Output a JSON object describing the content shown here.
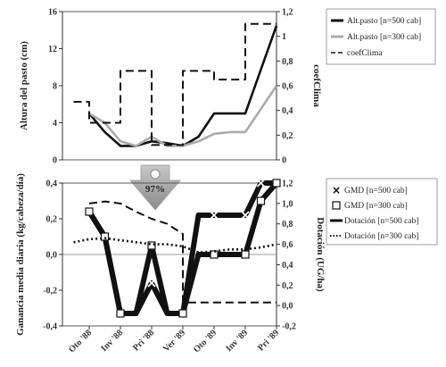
{
  "chart_data": [
    {
      "type": "line",
      "x": [
        "Oto '88",
        "Inv '88",
        "Pri '88",
        "Ver '89",
        "Oto '89",
        "Inv '89",
        "Pri '89"
      ],
      "ylabel": "Altura del pasto (cm)",
      "y2label": "coefClima",
      "ylim": [
        0,
        16
      ],
      "y2lim": [
        0,
        1.2
      ],
      "yticks": [
        "0",
        "4",
        "8",
        "12",
        "16"
      ],
      "y2ticks": [
        "0",
        "0,2",
        "0,4",
        "0,6",
        "0,8",
        "1",
        "1,2"
      ],
      "series": [
        {
          "name": "Alt.pasto [n=500 cab]",
          "axis": "left",
          "style": "solid",
          "color": "#111111",
          "points": [
            [
              0,
              5
            ],
            [
              0.5,
              3
            ],
            [
              1,
              1.5
            ],
            [
              1.5,
              1.5
            ],
            [
              2,
              2
            ],
            [
              2.5,
              1.8
            ],
            [
              3,
              1.5
            ],
            [
              3.5,
              2.5
            ],
            [
              4,
              5
            ],
            [
              4.5,
              5
            ],
            [
              5,
              5
            ],
            [
              6,
              14.5
            ]
          ]
        },
        {
          "name": "Alt.pasto [n=300 cab]",
          "axis": "left",
          "style": "solid",
          "color": "#aaaaaa",
          "points": [
            [
              0,
              5
            ],
            [
              0.5,
              4
            ],
            [
              1,
              2
            ],
            [
              1.5,
              1.5
            ],
            [
              2,
              2.5
            ],
            [
              2.5,
              1.5
            ],
            [
              3,
              1.5
            ],
            [
              3.5,
              2
            ],
            [
              4,
              2.8
            ],
            [
              4.5,
              3
            ],
            [
              5,
              3
            ],
            [
              6,
              8
            ]
          ]
        },
        {
          "name": "coefClima",
          "axis": "right",
          "style": "dashed",
          "color": "#111111",
          "points": [
            [
              -0.5,
              0.47
            ],
            [
              0,
              0.47
            ],
            [
              0,
              0.3
            ],
            [
              1,
              0.3
            ],
            [
              1,
              0.72
            ],
            [
              2,
              0.72
            ],
            [
              2,
              0.12
            ],
            [
              3,
              0.12
            ],
            [
              3,
              0.72
            ],
            [
              4,
              0.72
            ],
            [
              4,
              0.65
            ],
            [
              5,
              0.65
            ],
            [
              5,
              1.1
            ],
            [
              6,
              1.1
            ]
          ]
        }
      ]
    },
    {
      "type": "line",
      "x": [
        "Oto '88",
        "Inv '88",
        "Pri '88",
        "Ver '89",
        "Oto '89",
        "Inv '89",
        "Pri '89"
      ],
      "ylabel": "Ganancia media diaria (kg/cabeza/día)",
      "y2label": "Dotación (UG/ha)",
      "ylim": [
        -0.4,
        0.4
      ],
      "y2lim": [
        -0.2,
        1.2
      ],
      "yticks": [
        "-0,4",
        "-0,2",
        "0,0",
        "0,2",
        "0,4"
      ],
      "y2ticks": [
        "-0,2",
        "0,0",
        "0,2",
        "0,4",
        "0,6",
        "0,8",
        "1,0",
        "1,2"
      ],
      "series": [
        {
          "name": "GMD [n=500 cab]",
          "axis": "left",
          "style": "thick",
          "marker": "x",
          "color": "#111111",
          "points": [
            [
              0,
              0.24
            ],
            [
              0.5,
              0.1
            ],
            [
              1,
              -0.33
            ],
            [
              1.5,
              -0.33
            ],
            [
              2,
              -0.16
            ],
            [
              2.5,
              -0.33
            ],
            [
              3,
              -0.33
            ],
            [
              3.5,
              0.22
            ],
            [
              4,
              0.22
            ],
            [
              4.5,
              0.22
            ],
            [
              5,
              0.22
            ],
            [
              5.5,
              0.4
            ],
            [
              6,
              0.4
            ]
          ]
        },
        {
          "name": "GMD [n=300 cab]",
          "axis": "left",
          "style": "thick",
          "marker": "square",
          "color": "#111111",
          "points": [
            [
              0,
              0.24
            ],
            [
              0.5,
              0.1
            ],
            [
              1,
              -0.33
            ],
            [
              1.5,
              -0.33
            ],
            [
              2,
              0.05
            ],
            [
              2.5,
              -0.33
            ],
            [
              3,
              -0.33
            ],
            [
              3.5,
              0.0
            ],
            [
              4,
              0.0
            ],
            [
              4.5,
              0.0
            ],
            [
              5,
              0.0
            ],
            [
              5.5,
              0.3
            ],
            [
              6,
              0.4
            ]
          ]
        },
        {
          "name": "Dotación [n=500 cab]",
          "axis": "right",
          "style": "dashed",
          "color": "#111111",
          "points": [
            [
              0,
              1.0
            ],
            [
              0.5,
              1.02
            ],
            [
              1,
              1.0
            ],
            [
              1.5,
              0.92
            ],
            [
              2,
              0.85
            ],
            [
              2.5,
              0.8
            ],
            [
              3,
              0.7
            ],
            [
              3,
              0.03
            ],
            [
              6,
              0.03
            ]
          ]
        },
        {
          "name": "Dotación [n=300 cab]",
          "axis": "right",
          "style": "dotted",
          "color": "#111111",
          "points": [
            [
              -0.5,
              0.62
            ],
            [
              0,
              0.65
            ],
            [
              0.5,
              0.66
            ],
            [
              1,
              0.64
            ],
            [
              1.5,
              0.62
            ],
            [
              2,
              0.6
            ],
            [
              2.5,
              0.6
            ],
            [
              3,
              0.58
            ],
            [
              3.5,
              0.52
            ],
            [
              4,
              0.53
            ],
            [
              4.5,
              0.55
            ],
            [
              5,
              0.55
            ],
            [
              5.5,
              0.57
            ],
            [
              6,
              0.6
            ]
          ]
        }
      ]
    }
  ],
  "arrow": {
    "label": "97%"
  }
}
